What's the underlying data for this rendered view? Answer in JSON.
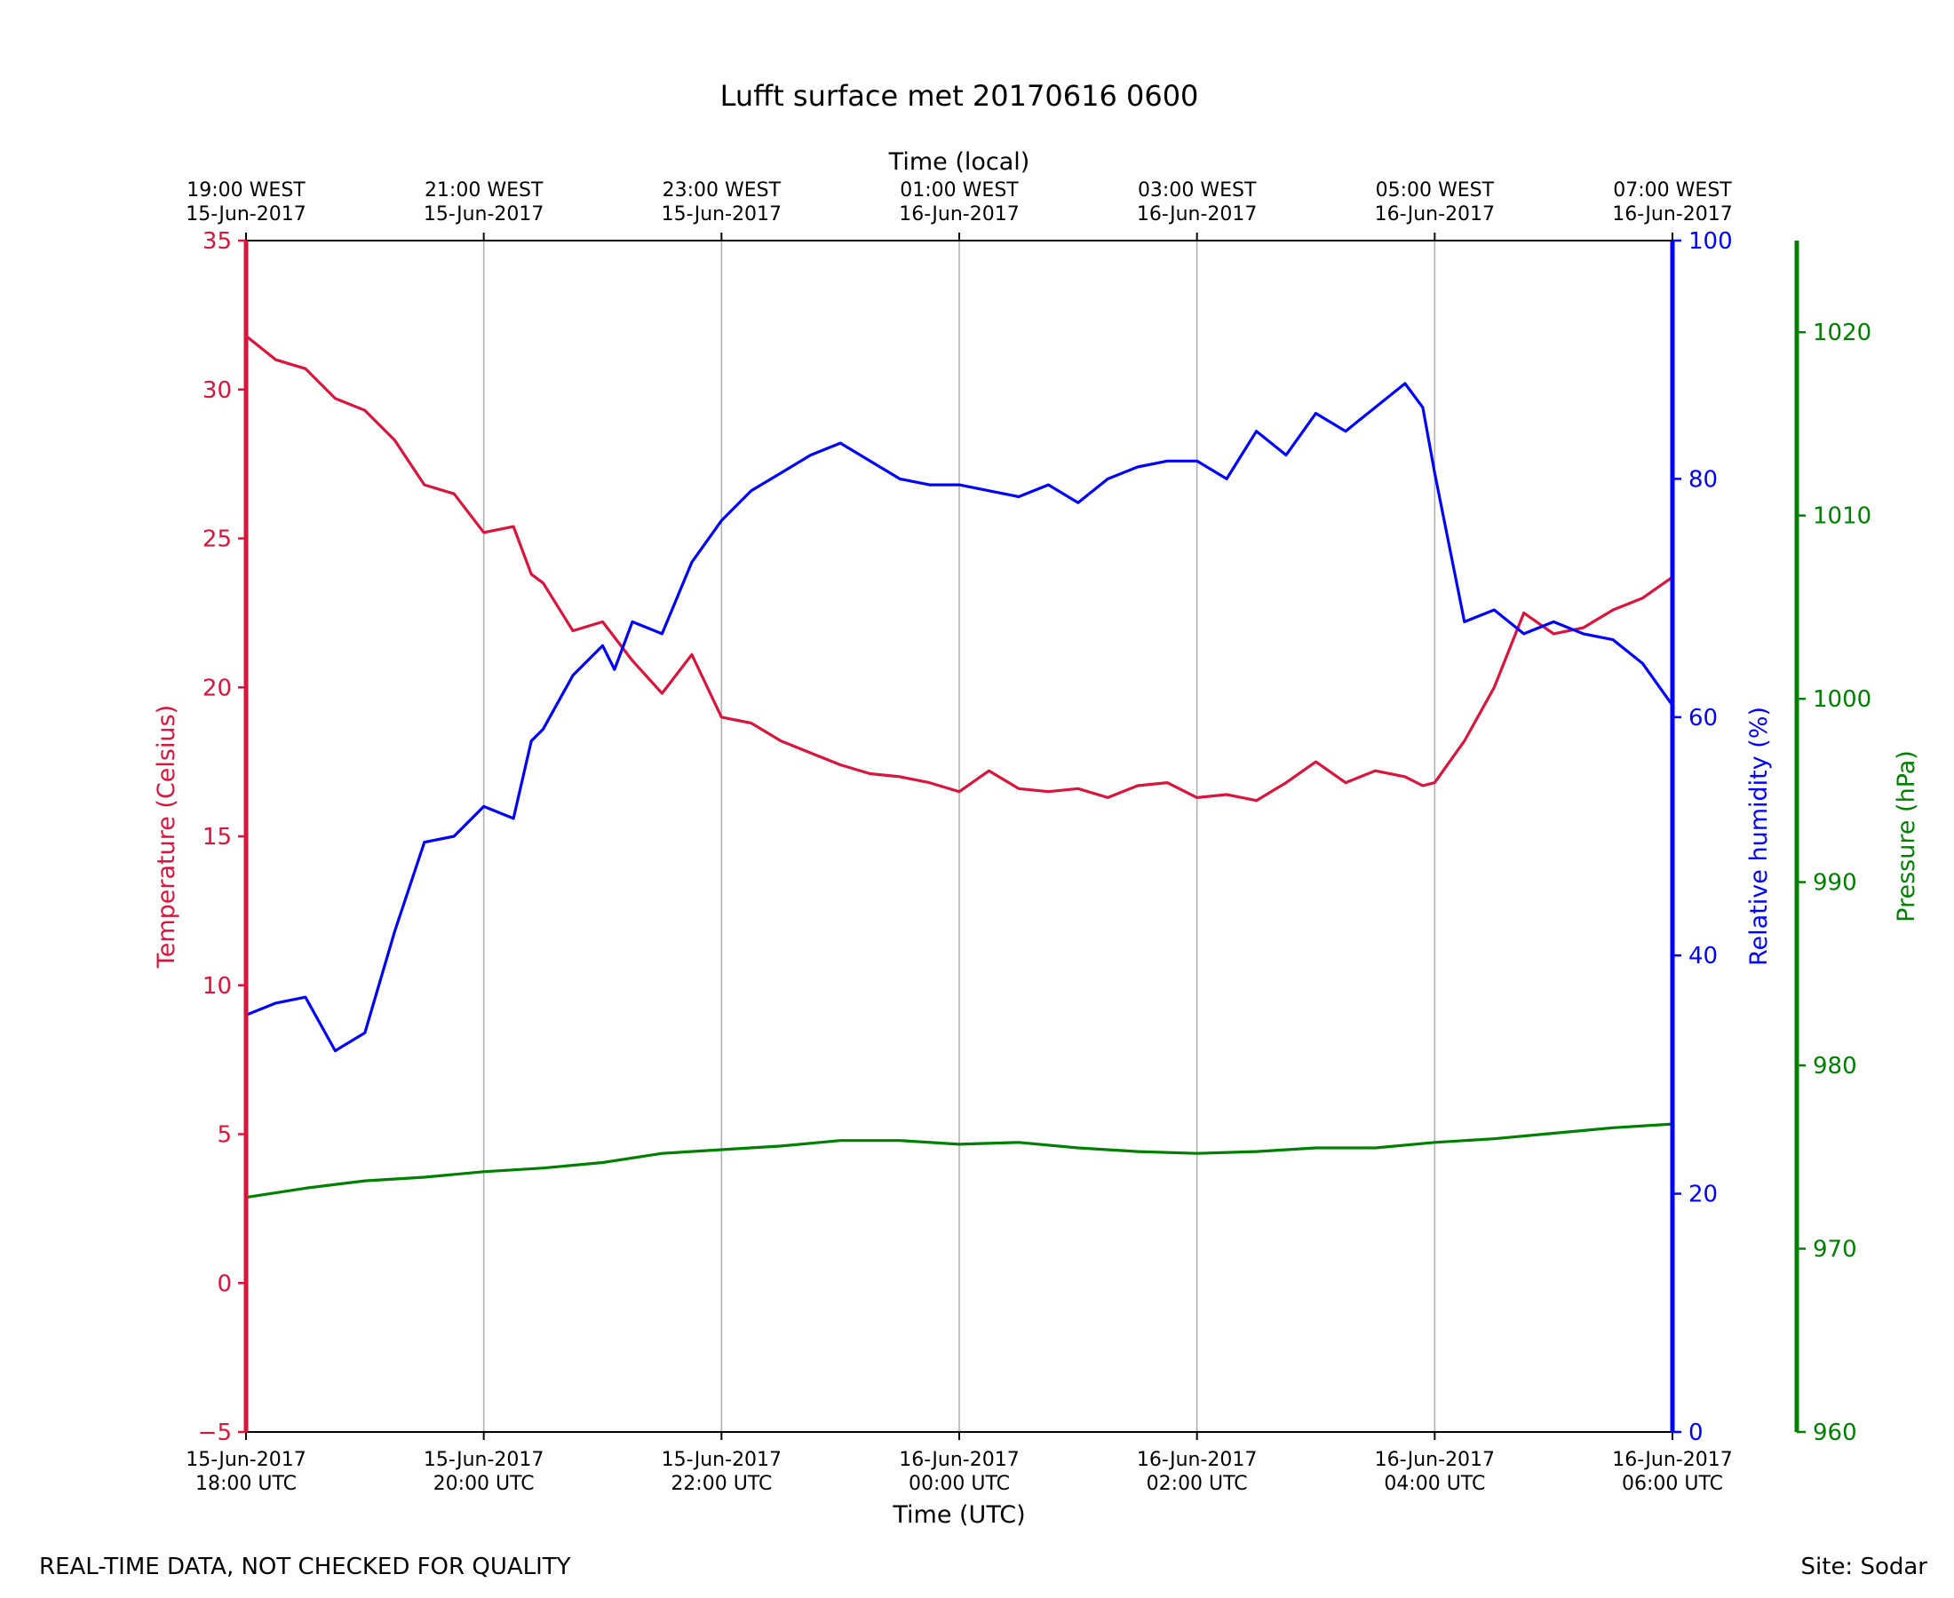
{
  "chart_data": {
    "type": "line",
    "title": "Lufft surface met 20170616 0600",
    "x_bottom_label": "Time (UTC)",
    "x_top_label": "Time (local)",
    "x_range": [
      "2017-06-15 18:00 UTC",
      "2017-06-16 06:00 UTC"
    ],
    "x_ticks_bottom": [
      [
        "15-Jun-2017",
        "18:00 UTC"
      ],
      [
        "15-Jun-2017",
        "20:00 UTC"
      ],
      [
        "15-Jun-2017",
        "22:00 UTC"
      ],
      [
        "16-Jun-2017",
        "00:00 UTC"
      ],
      [
        "16-Jun-2017",
        "02:00 UTC"
      ],
      [
        "16-Jun-2017",
        "04:00 UTC"
      ],
      [
        "16-Jun-2017",
        "06:00 UTC"
      ]
    ],
    "x_ticks_top": [
      [
        "19:00 WEST",
        "15-Jun-2017"
      ],
      [
        "21:00 WEST",
        "15-Jun-2017"
      ],
      [
        "23:00 WEST",
        "15-Jun-2017"
      ],
      [
        "01:00 WEST",
        "16-Jun-2017"
      ],
      [
        "03:00 WEST",
        "16-Jun-2017"
      ],
      [
        "05:00 WEST",
        "16-Jun-2017"
      ],
      [
        "07:00 WEST",
        "16-Jun-2017"
      ]
    ],
    "x_grid": true,
    "axes": {
      "temperature": {
        "label": "Temperature (Celsius)",
        "ylim": [
          -5,
          35
        ],
        "ticks": [
          -5,
          0,
          5,
          10,
          15,
          20,
          25,
          30,
          35
        ],
        "color": "#dc143c",
        "side": "left"
      },
      "humidity": {
        "label": "Relative humidity (%)",
        "ylim": [
          0,
          100
        ],
        "ticks": [
          0,
          20,
          40,
          60,
          80,
          100
        ],
        "color": "#0000ff",
        "side": "right"
      },
      "pressure": {
        "label": "Pressure (hPa)",
        "ylim": [
          960,
          1025
        ],
        "ticks": [
          960,
          970,
          980,
          990,
          1000,
          1010,
          1020
        ],
        "color": "#008000",
        "side": "right-outer"
      }
    },
    "series": [
      {
        "axis": "temperature",
        "color": "#dc143c",
        "x_hours_utc": [
          18.0,
          18.25,
          18.5,
          18.75,
          19.0,
          19.25,
          19.5,
          19.75,
          20.0,
          20.25,
          20.4,
          20.5,
          20.75,
          21.0,
          21.25,
          21.5,
          21.75,
          22.0,
          22.25,
          22.5,
          22.75,
          23.0,
          23.25,
          23.5,
          23.75,
          24.0,
          24.25,
          24.5,
          24.75,
          25.0,
          25.25,
          25.5,
          25.75,
          26.0,
          26.25,
          26.5,
          26.75,
          27.0,
          27.25,
          27.5,
          27.75,
          27.9,
          28.0,
          28.25,
          28.5,
          28.75,
          29.0,
          29.25,
          29.5,
          29.75,
          30.0
        ],
        "values": [
          31.8,
          31.0,
          30.7,
          29.7,
          29.3,
          28.3,
          26.8,
          26.5,
          25.2,
          25.4,
          23.8,
          23.5,
          21.9,
          22.2,
          20.9,
          19.8,
          21.1,
          19.0,
          18.8,
          18.2,
          17.8,
          17.4,
          17.1,
          17.0,
          16.8,
          16.5,
          17.2,
          16.6,
          16.5,
          16.6,
          16.3,
          16.7,
          16.8,
          16.3,
          16.4,
          16.2,
          16.8,
          17.5,
          16.8,
          17.2,
          17.0,
          16.7,
          16.8,
          18.2,
          20.0,
          22.5,
          21.8,
          22.0,
          22.6,
          23.0,
          23.7
        ]
      },
      {
        "axis": "humidity",
        "color": "#0000ff",
        "x_hours_utc": [
          18.0,
          18.25,
          18.5,
          18.75,
          19.0,
          19.25,
          19.5,
          19.75,
          20.0,
          20.25,
          20.4,
          20.5,
          20.75,
          21.0,
          21.1,
          21.25,
          21.5,
          21.75,
          22.0,
          22.25,
          22.5,
          22.75,
          23.0,
          23.25,
          23.5,
          23.75,
          24.0,
          24.25,
          24.5,
          24.75,
          25.0,
          25.25,
          25.5,
          25.75,
          26.0,
          26.25,
          26.5,
          26.75,
          27.0,
          27.25,
          27.5,
          27.75,
          27.9,
          28.0,
          28.25,
          28.5,
          28.75,
          29.0,
          29.25,
          29.5,
          29.75,
          30.0
        ],
        "values": [
          35.0,
          36.0,
          36.5,
          32.0,
          33.5,
          42.0,
          49.5,
          50.0,
          52.5,
          51.5,
          58.0,
          59.0,
          63.5,
          66.0,
          64.0,
          68.0,
          67.0,
          73.0,
          76.5,
          79.0,
          80.5,
          82.0,
          83.0,
          81.5,
          80.0,
          79.5,
          79.5,
          79.0,
          78.5,
          79.5,
          78.0,
          80.0,
          81.0,
          81.5,
          81.5,
          80.0,
          84.0,
          82.0,
          85.5,
          84.0,
          86.0,
          88.0,
          86.0,
          80.5,
          68.0,
          69.0,
          67.0,
          68.0,
          67.0,
          66.5,
          64.5,
          61.0
        ]
      },
      {
        "axis": "pressure",
        "color": "#008000",
        "x_hours_utc": [
          18.0,
          18.5,
          19.0,
          19.5,
          20.0,
          20.5,
          21.0,
          21.5,
          22.0,
          22.5,
          23.0,
          23.5,
          24.0,
          24.5,
          25.0,
          25.5,
          26.0,
          26.5,
          27.0,
          27.5,
          28.0,
          28.5,
          29.0,
          29.5,
          30.0
        ],
        "values": [
          972.8,
          973.3,
          973.7,
          973.9,
          974.2,
          974.4,
          974.7,
          975.2,
          975.4,
          975.6,
          975.9,
          975.9,
          975.7,
          975.8,
          975.5,
          975.3,
          975.2,
          975.3,
          975.5,
          975.5,
          975.8,
          976.0,
          976.3,
          976.6,
          976.8
        ]
      }
    ]
  },
  "footer": {
    "left_note": "REAL-TIME DATA, NOT CHECKED FOR QUALITY",
    "right_note": "Site: Sodar"
  }
}
